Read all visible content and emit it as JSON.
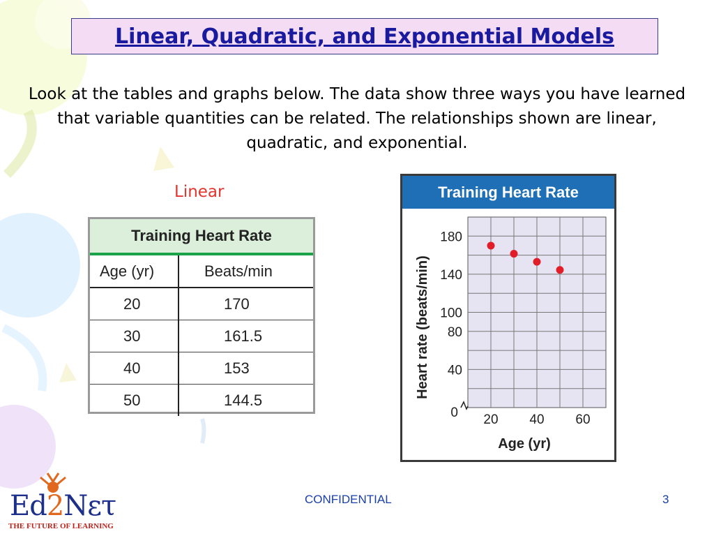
{
  "slide": {
    "title": "Linear, Quadratic, and Exponential Models",
    "intro": "Look at the tables and graphs below. The data show three ways you have learned that variable quantities can be related. The relationships shown are linear, quadratic, and exponential.",
    "table_label": "Linear",
    "footer_text": "CONFIDENTIAL",
    "page_number": "3"
  },
  "table": {
    "caption": "Training Heart Rate",
    "headers": [
      "Age (yr)",
      "Beats/min"
    ],
    "rows": [
      [
        "20",
        "170"
      ],
      [
        "30",
        "161.5"
      ],
      [
        "40",
        "153"
      ],
      [
        "50",
        "144.5"
      ]
    ]
  },
  "chart_data": {
    "type": "scatter",
    "title": "Training Heart Rate",
    "xlabel": "Age (yr)",
    "ylabel": "Heart rate (beats/min)",
    "x_ticks": [
      "20",
      "40",
      "60"
    ],
    "y_ticks": [
      "40",
      "80",
      "100",
      "140",
      "180"
    ],
    "origin_label": "0",
    "points": [
      {
        "x": 20,
        "y": 170
      },
      {
        "x": 30,
        "y": 161.5
      },
      {
        "x": 40,
        "y": 153
      },
      {
        "x": 50,
        "y": 144.5
      }
    ],
    "grid": true,
    "point_color": "#e21d2a",
    "grid_background": "#e6e4f2"
  },
  "logo": {
    "name_left": "Ed",
    "name_mid": "2",
    "name_right": "Nετ",
    "tagline": "THE FUTURE OF LEARNING"
  },
  "colors": {
    "title_bg": "#f4dcf4",
    "title_text": "#1a1a9e",
    "linear_label": "#e2352e",
    "chart_header": "#1e6fb6",
    "table_rule": "#1ba34a"
  }
}
